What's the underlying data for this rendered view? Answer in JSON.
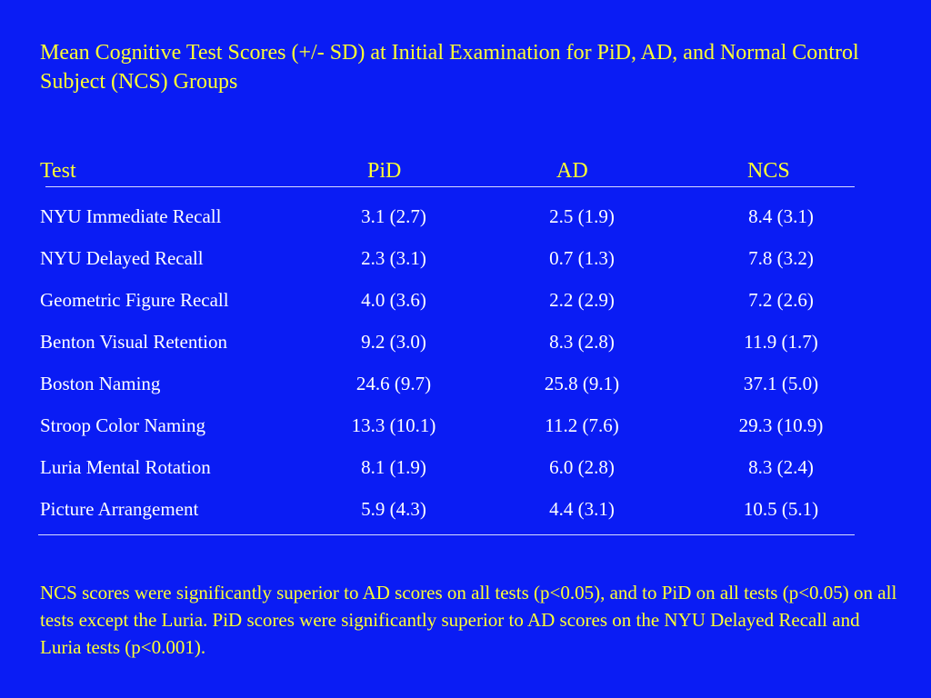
{
  "slide": {
    "title": "Mean Cognitive Test Scores  (+/- SD) at Initial Examination for PiD, AD, and Normal Control Subject (NCS) Groups",
    "footnote": "NCS scores were significantly superior to AD scores on all tests (p<0.05), and to PiD on all tests (p<0.05) on all tests except the Luria.  PiD scores were significantly superior to AD scores on the NYU Delayed Recall and Luria tests (p<0.001)."
  },
  "table": {
    "headers": [
      "Test",
      "PiD",
      "AD",
      "NCS"
    ],
    "rows": [
      [
        "NYU Immediate Recall",
        "3.1 (2.7)",
        "2.5 (1.9)",
        "8.4 (3.1)"
      ],
      [
        "NYU Delayed Recall",
        "2.3 (3.1)",
        "0.7 (1.3)",
        "7.8 (3.2)"
      ],
      [
        "Geometric Figure Recall",
        "4.0 (3.6)",
        "2.2 (2.9)",
        "7.2 (2.6)"
      ],
      [
        "Benton Visual Retention",
        "9.2 (3.0)",
        "8.3 (2.8)",
        "11.9 (1.7)"
      ],
      [
        "Boston Naming",
        "24.6 (9.7)",
        "25.8 (9.1)",
        "37.1 (5.0)"
      ],
      [
        "Stroop Color Naming",
        "13.3 (10.1)",
        "11.2 (7.6)",
        "29.3 (10.9)"
      ],
      [
        "Luria Mental Rotation",
        "8.1 (1.9)",
        "6.0 (2.8)",
        "8.3 (2.4)"
      ],
      [
        "Picture Arrangement",
        "5.9 (4.3)",
        "4.4 (3.1)",
        "10.5 (5.1)"
      ]
    ]
  },
  "colors": {
    "background": "#0a1cf4",
    "title_text": "#ffff33",
    "table_text": "#ffffff",
    "rule": "#d8dcff"
  }
}
